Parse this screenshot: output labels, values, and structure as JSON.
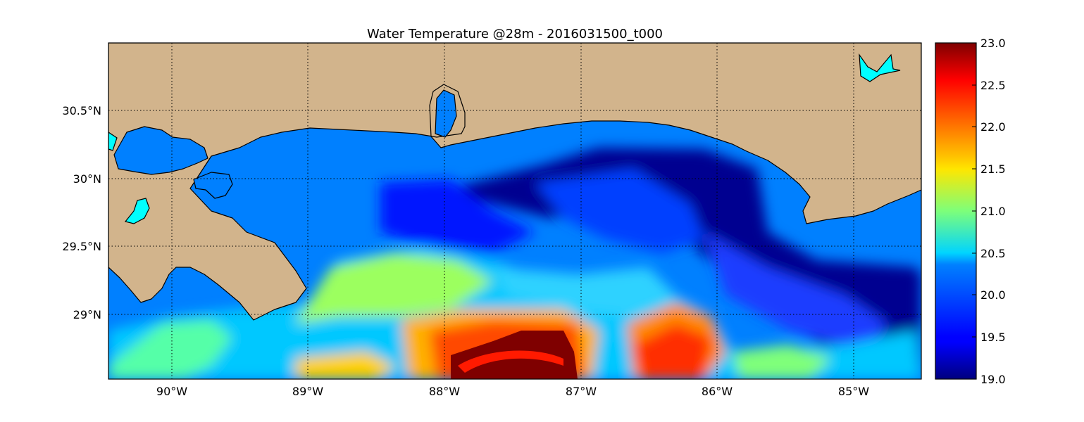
{
  "figure": {
    "title": "Water Temperature @28m - 2016031500_t000"
  },
  "axes": {
    "x_ticks": [
      "90°W",
      "89°W",
      "88°W",
      "87°W",
      "86°W",
      "85°W"
    ],
    "y_ticks": [
      "30.5°N",
      "30°N",
      "29.5°N",
      "29°N"
    ],
    "lon_range": [
      -90.5,
      -84.5
    ],
    "lat_range": [
      28.55,
      31.0
    ],
    "grid": true
  },
  "colorbar": {
    "colormap": "jet",
    "vmin": 19.0,
    "vmax": 23.0,
    "tick_labels": [
      "23.0",
      "22.5",
      "22.0",
      "21.5",
      "21.0",
      "20.5",
      "20.0",
      "19.5",
      "19.0"
    ]
  },
  "colors": {
    "land": "#d2b48c",
    "inland_water": "#00ffff",
    "coastline": "#000000",
    "masked_ocean": "#0080ff"
  },
  "chart_data": {
    "type": "heatmap",
    "title": "Water Temperature @28m - 2016031500_t000",
    "variable": "water temperature",
    "depth": "28m",
    "x_axis": "longitude",
    "y_axis": "latitude",
    "zlim": [
      19.0,
      23.0
    ],
    "features": [
      {
        "region": "warm core south of 88°W–87°W near 28.6°N",
        "value": 23.0
      },
      {
        "region": "warm patch near 86.5°W, 28.7°N",
        "value": 22.5
      },
      {
        "region": "warm band 89°W–88°W around 29.2°N",
        "value": 21.3
      },
      {
        "region": "cold pool 87°W–85.8°W around 30°N",
        "value": 19.0
      }
    ]
  }
}
